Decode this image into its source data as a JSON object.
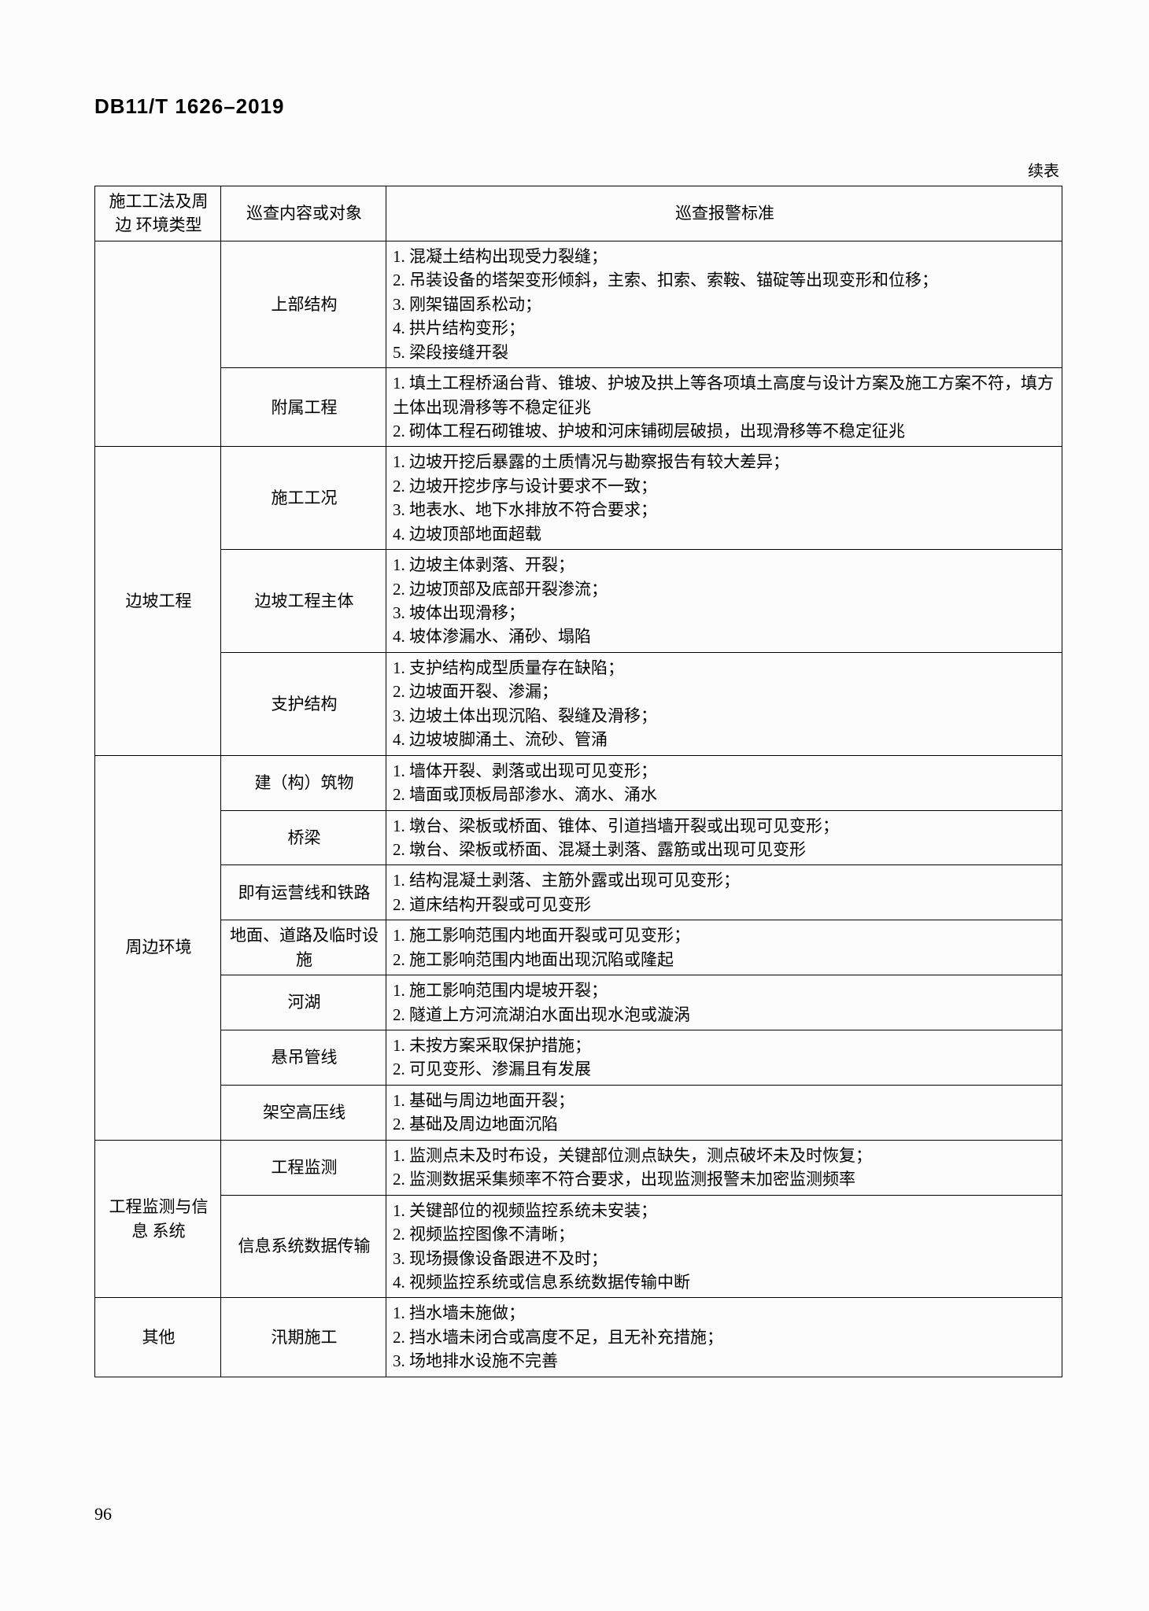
{
  "doc_id": "DB11/T 1626–2019",
  "continued": "续表",
  "page_number": "96",
  "headers": {
    "h1": "施工工法及周边\n环境类型",
    "h2": "巡查内容或对象",
    "h3": "巡查报警标准"
  },
  "groups": [
    {
      "cat": "",
      "rows": [
        {
          "c2": "上部结构",
          "c3": "1. 混凝土结构出现受力裂缝；\n2. 吊装设备的塔架变形倾斜，主索、扣索、索鞍、锚碇等出现变形和位移；\n3. 刚架锚固系松动；\n4. 拱片结构变形；\n5. 梁段接缝开裂"
        },
        {
          "c2": "附属工程",
          "c3": "1. 填土工程桥涵台背、锥坡、护坡及拱上等各项填土高度与设计方案及施工方案不符，填方土体出现滑移等不稳定征兆\n2. 砌体工程石砌锥坡、护坡和河床铺砌层破损，出现滑移等不稳定征兆"
        }
      ]
    },
    {
      "cat": "边坡工程",
      "rows": [
        {
          "c2": "施工工况",
          "c3": "1. 边坡开挖后暴露的土质情况与勘察报告有较大差异；\n2. 边坡开挖步序与设计要求不一致；\n3. 地表水、地下水排放不符合要求；\n4. 边坡顶部地面超载"
        },
        {
          "c2": "边坡工程主体",
          "c3": "1. 边坡主体剥落、开裂；\n2. 边坡顶部及底部开裂渗流；\n3. 坡体出现滑移；\n4. 坡体渗漏水、涌砂、塌陷"
        },
        {
          "c2": "支护结构",
          "c3": "1. 支护结构成型质量存在缺陷；\n2. 边坡面开裂、渗漏；\n3. 边坡土体出现沉陷、裂缝及滑移；\n4. 边坡坡脚涌土、流砂、管涌"
        }
      ]
    },
    {
      "cat": "周边环境",
      "rows": [
        {
          "c2": "建（构）筑物",
          "c3": "1. 墙体开裂、剥落或出现可见变形；\n2. 墙面或顶板局部渗水、滴水、涌水"
        },
        {
          "c2": "桥梁",
          "c3": "1. 墩台、梁板或桥面、锥体、引道挡墙开裂或出现可见变形；\n2. 墩台、梁板或桥面、混凝土剥落、露筋或出现可见变形"
        },
        {
          "c2": "即有运营线和铁路",
          "c3": "1. 结构混凝土剥落、主筋外露或出现可见变形；\n2. 道床结构开裂或可见变形"
        },
        {
          "c2": "地面、道路及临时设施",
          "c3": "1. 施工影响范围内地面开裂或可见变形；\n2. 施工影响范围内地面出现沉陷或隆起"
        },
        {
          "c2": "河湖",
          "c3": "1. 施工影响范围内堤坡开裂；\n2. 隧道上方河流湖泊水面出现水泡或漩涡"
        },
        {
          "c2": "悬吊管线",
          "c3": "1. 未按方案采取保护措施；\n2. 可见变形、渗漏且有发展"
        },
        {
          "c2": "架空高压线",
          "c3": "1. 基础与周边地面开裂；\n2. 基础及周边地面沉陷"
        }
      ]
    },
    {
      "cat": "工程监测与信息\n系统",
      "rows": [
        {
          "c2": "工程监测",
          "c3": "1. 监测点未及时布设，关键部位测点缺失，测点破坏未及时恢复；\n2. 监测数据采集频率不符合要求，出现监测报警未加密监测频率"
        },
        {
          "c2": "信息系统数据传输",
          "c3": "1. 关键部位的视频监控系统未安装；\n2. 视频监控图像不清晰；\n3. 现场摄像设备跟进不及时；\n4. 视频监控系统或信息系统数据传输中断"
        }
      ]
    },
    {
      "cat": "其他",
      "rows": [
        {
          "c2": "汛期施工",
          "c3": "1. 挡水墙未施做；\n2. 挡水墙未闭合或高度不足，且无补充措施；\n3. 场地排水设施不完善"
        }
      ]
    }
  ]
}
